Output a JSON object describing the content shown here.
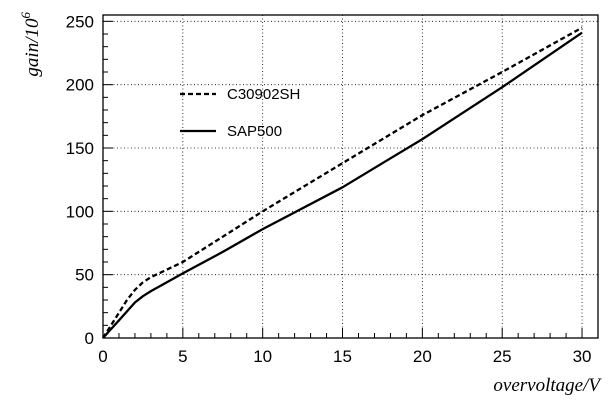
{
  "chart_data": {
    "type": "line",
    "xlabel": "overvoltage/V",
    "ylabel_main": "gain/10",
    "ylabel_exp": "6",
    "xlim": [
      0,
      31
    ],
    "ylim": [
      0,
      255
    ],
    "grid": true,
    "legend_position": "upper-left",
    "x_ticks": [
      0,
      5,
      10,
      15,
      20,
      25,
      30
    ],
    "y_ticks": [
      0,
      50,
      100,
      150,
      200,
      250
    ],
    "series": [
      {
        "name": "C30902SH",
        "style": "dashed",
        "color": "#000000",
        "x": [
          0,
          0.5,
          1,
          1.5,
          2,
          2.5,
          3,
          4,
          5,
          7.5,
          10,
          15,
          20,
          25,
          30
        ],
        "y": [
          0,
          10,
          20,
          30,
          38,
          44,
          48,
          54,
          60,
          80,
          100,
          138,
          176,
          210,
          245
        ]
      },
      {
        "name": "SAP500",
        "style": "solid",
        "color": "#000000",
        "x": [
          0,
          0.5,
          1,
          1.5,
          2,
          2.5,
          3,
          4,
          5,
          7.5,
          10,
          15,
          17.5,
          20,
          25,
          30
        ],
        "y": [
          0,
          7,
          14,
          21,
          28,
          33,
          37,
          44,
          51,
          68,
          86,
          119,
          138,
          157,
          198,
          241
        ]
      }
    ]
  }
}
